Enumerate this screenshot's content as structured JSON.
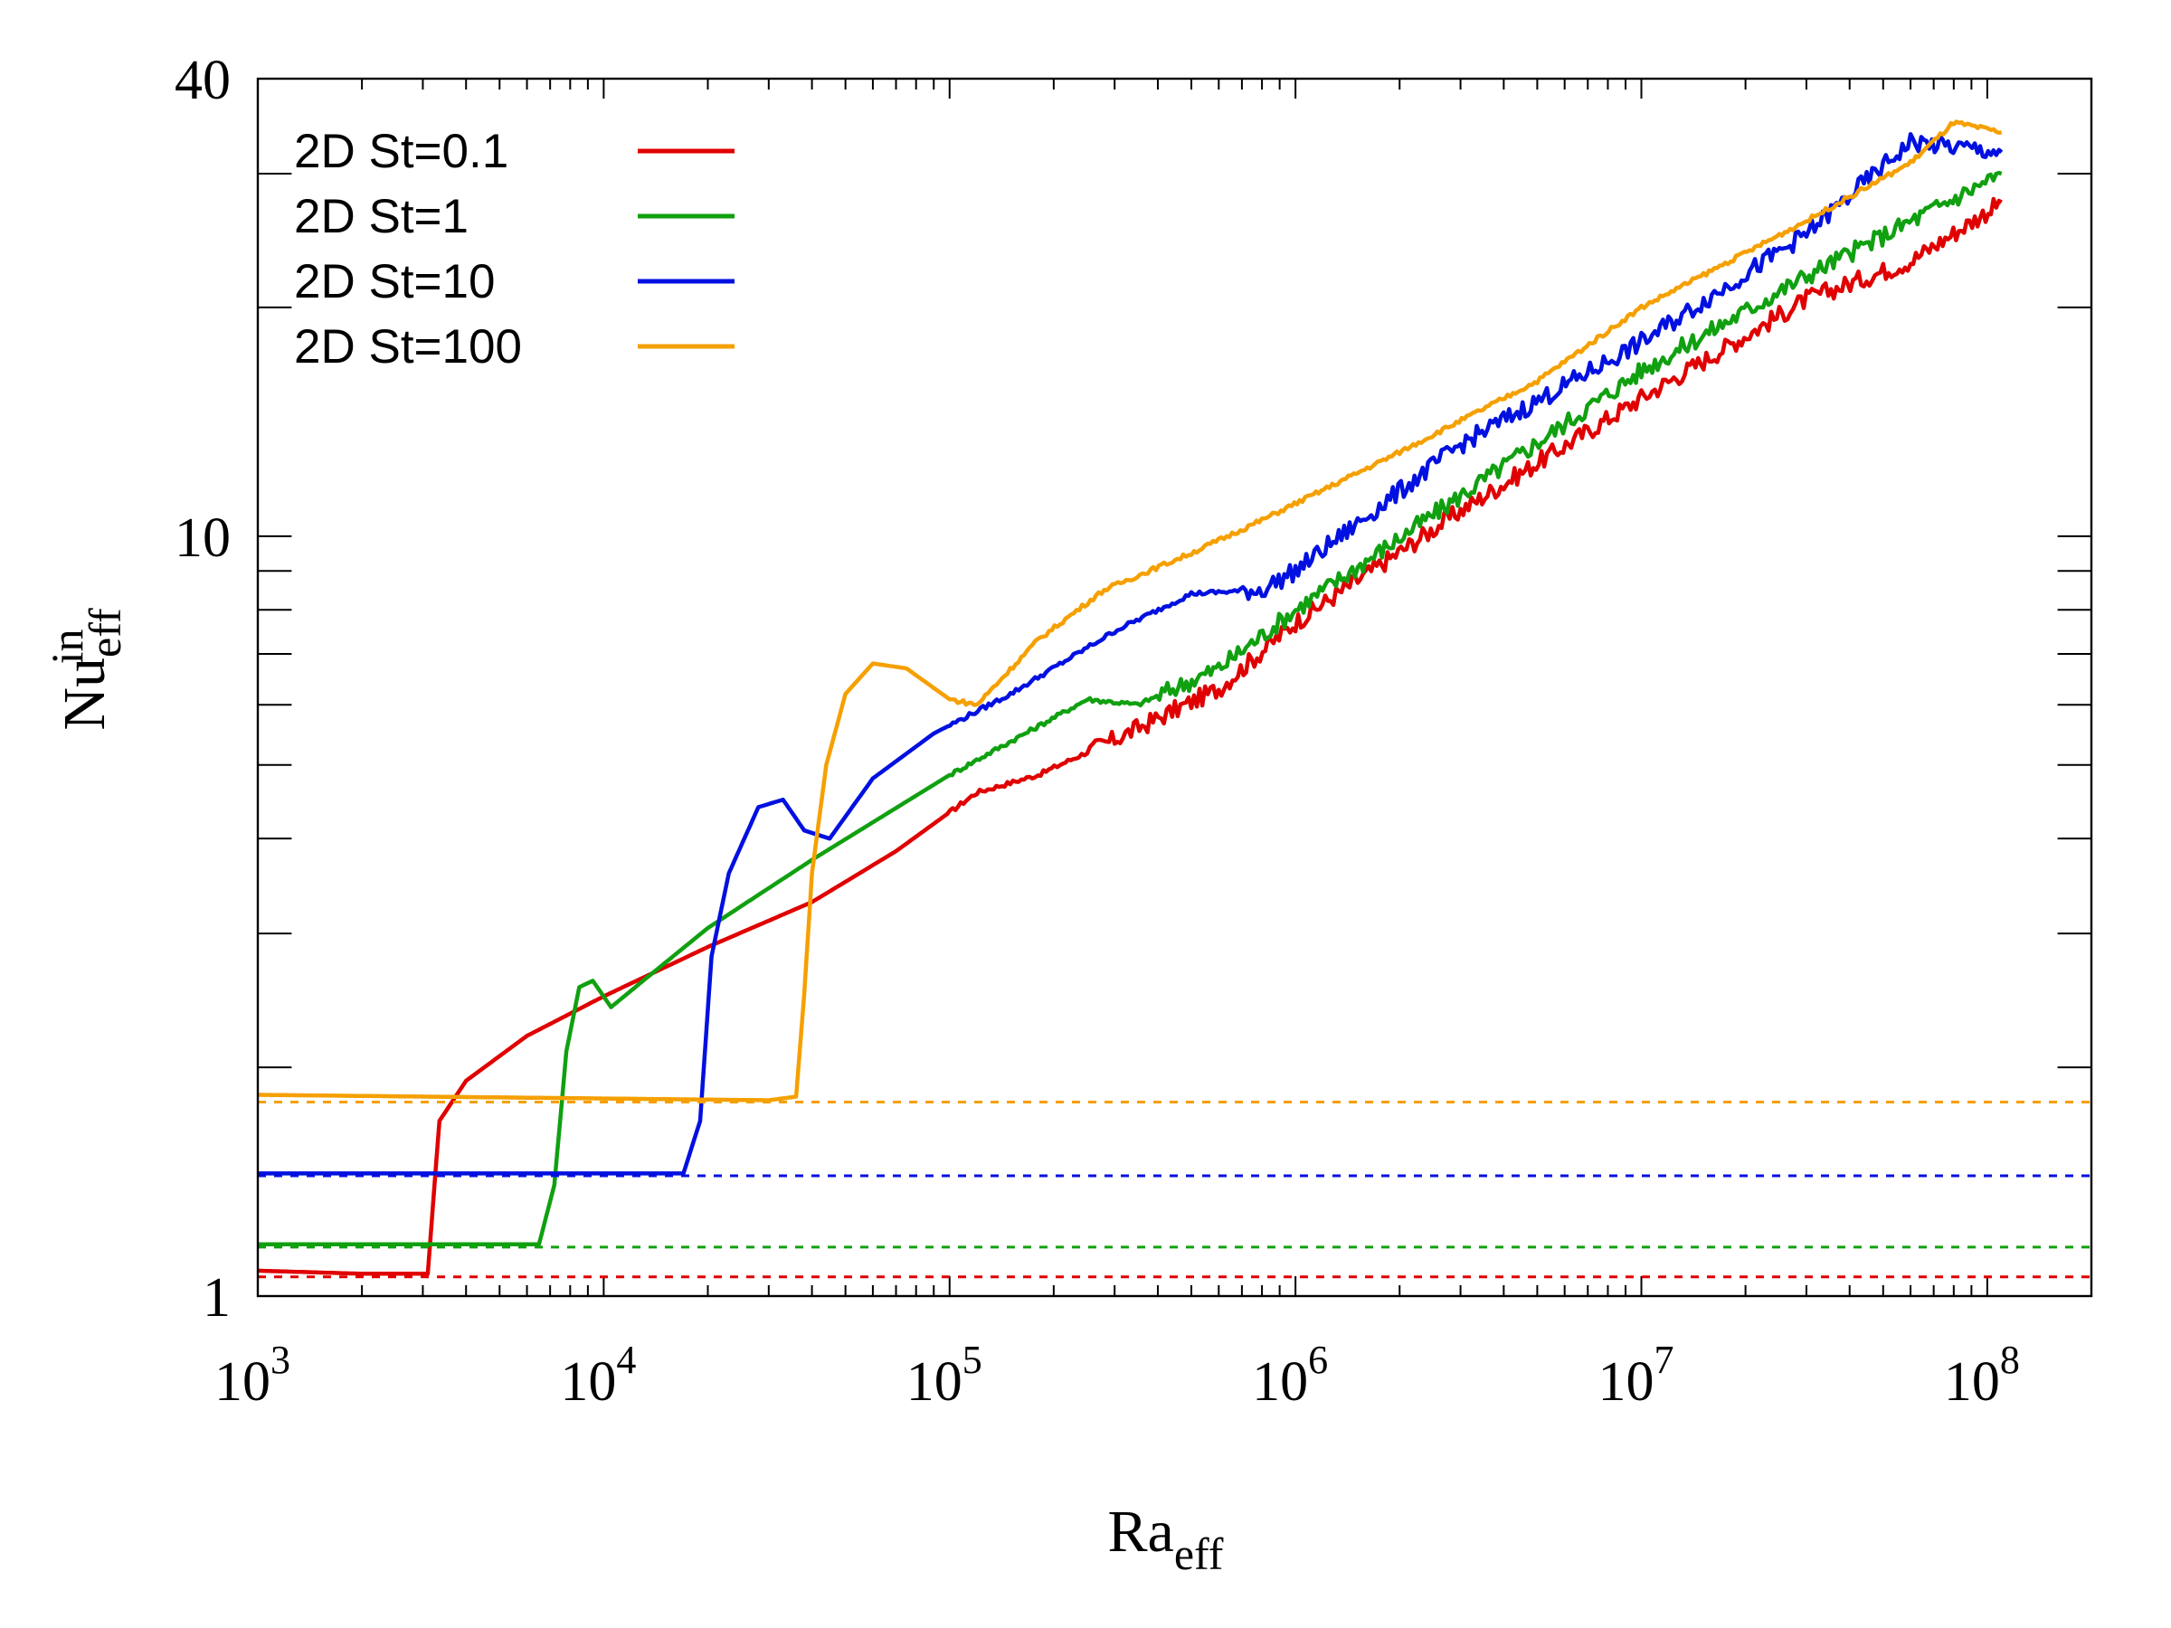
{
  "chart_data": {
    "type": "line",
    "title": "",
    "xlabel": "Ra",
    "xlabel_sub": "eff",
    "ylabel": "Nu",
    "ylabel_sub": "eff",
    "ylabel_sup": "in",
    "xscale": "log",
    "yscale": "log",
    "xlim": [
      1000,
      200000000
    ],
    "ylim": [
      1,
      40
    ],
    "x_ticks": [
      {
        "value": 1000,
        "base": "10",
        "exp": "3"
      },
      {
        "value": 10000,
        "base": "10",
        "exp": "4"
      },
      {
        "value": 100000,
        "base": "10",
        "exp": "5"
      },
      {
        "value": 1000000,
        "base": "10",
        "exp": "6"
      },
      {
        "value": 10000000,
        "base": "10",
        "exp": "7"
      },
      {
        "value": 100000000,
        "base": "10",
        "exp": "8"
      }
    ],
    "y_ticks": [
      {
        "value": 1,
        "label": "1"
      },
      {
        "value": 10,
        "label": "10"
      },
      {
        "value": 40,
        "label": "40"
      }
    ],
    "legend_position": "top-left",
    "series": [
      {
        "name": "2D St=0.1",
        "color": "#e00000",
        "baseline": 1.06,
        "noise_start": 250000,
        "points": [
          [
            1000,
            1.08
          ],
          [
            2000,
            1.07
          ],
          [
            3100,
            1.07
          ],
          [
            3350,
            1.7
          ],
          [
            4000,
            1.92
          ],
          [
            6000,
            2.2
          ],
          [
            10000,
            2.48
          ],
          [
            20000,
            2.88
          ],
          [
            40000,
            3.3
          ],
          [
            70000,
            3.85
          ],
          [
            120000,
            4.6
          ],
          [
            180000,
            4.85
          ],
          [
            300000,
            5.4
          ],
          [
            600000,
            6.3
          ],
          [
            1000000,
            7.7
          ],
          [
            3000000,
            10.8
          ],
          [
            10000000,
            15.2
          ],
          [
            30000000,
            20.5
          ],
          [
            60000000,
            23
          ],
          [
            110000000,
            27.5
          ]
        ]
      },
      {
        "name": "2D St=1",
        "color": "#10a010",
        "baseline": 1.16,
        "noise_start": 400000,
        "points": [
          [
            1000,
            1.17
          ],
          [
            6500,
            1.17
          ],
          [
            7200,
            1.4
          ],
          [
            7800,
            2.1
          ],
          [
            8500,
            2.55
          ],
          [
            9300,
            2.6
          ],
          [
            10500,
            2.4
          ],
          [
            13000,
            2.6
          ],
          [
            20000,
            3.05
          ],
          [
            40000,
            3.75
          ],
          [
            100000,
            4.85
          ],
          [
            250000,
            6.1
          ],
          [
            350000,
            6.0
          ],
          [
            600000,
            6.7
          ],
          [
            1000000,
            8.0
          ],
          [
            3000000,
            11.3
          ],
          [
            10000000,
            16.5
          ],
          [
            30000000,
            22
          ],
          [
            110000000,
            30
          ]
        ]
      },
      {
        "name": "2D St=10",
        "color": "#0010e0",
        "baseline": 1.44,
        "noise_start": 700000,
        "points": [
          [
            1000,
            1.45
          ],
          [
            17000,
            1.45
          ],
          [
            19000,
            1.7
          ],
          [
            20500,
            2.8
          ],
          [
            23000,
            3.6
          ],
          [
            28000,
            4.4
          ],
          [
            33000,
            4.5
          ],
          [
            38000,
            4.1
          ],
          [
            45000,
            4.0
          ],
          [
            60000,
            4.8
          ],
          [
            90000,
            5.5
          ],
          [
            150000,
            6.2
          ],
          [
            300000,
            7.5
          ],
          [
            500000,
            8.4
          ],
          [
            800000,
            8.5
          ],
          [
            1000000,
            9.0
          ],
          [
            3000000,
            13.2
          ],
          [
            10000000,
            18
          ],
          [
            30000000,
            25
          ],
          [
            60000000,
            33
          ],
          [
            110000000,
            32
          ]
        ]
      },
      {
        "name": "2D St=100",
        "color": "#f5a000",
        "baseline": 1.8,
        "noise_start": 1000000000,
        "points": [
          [
            1000,
            1.84
          ],
          [
            30000,
            1.81
          ],
          [
            36000,
            1.83
          ],
          [
            38000,
            2.5
          ],
          [
            40000,
            3.6
          ],
          [
            44000,
            5.0
          ],
          [
            50000,
            6.2
          ],
          [
            60000,
            6.8
          ],
          [
            75000,
            6.7
          ],
          [
            100000,
            6.1
          ],
          [
            120000,
            6.0
          ],
          [
            180000,
            7.3
          ],
          [
            280000,
            8.5
          ],
          [
            500000,
            9.5
          ],
          [
            800000,
            10.5
          ],
          [
            2000000,
            12.9
          ],
          [
            5000000,
            16
          ],
          [
            10000000,
            20
          ],
          [
            30000000,
            26
          ],
          [
            60000000,
            31
          ],
          [
            80000000,
            35
          ],
          [
            110000000,
            34
          ]
        ]
      }
    ]
  }
}
